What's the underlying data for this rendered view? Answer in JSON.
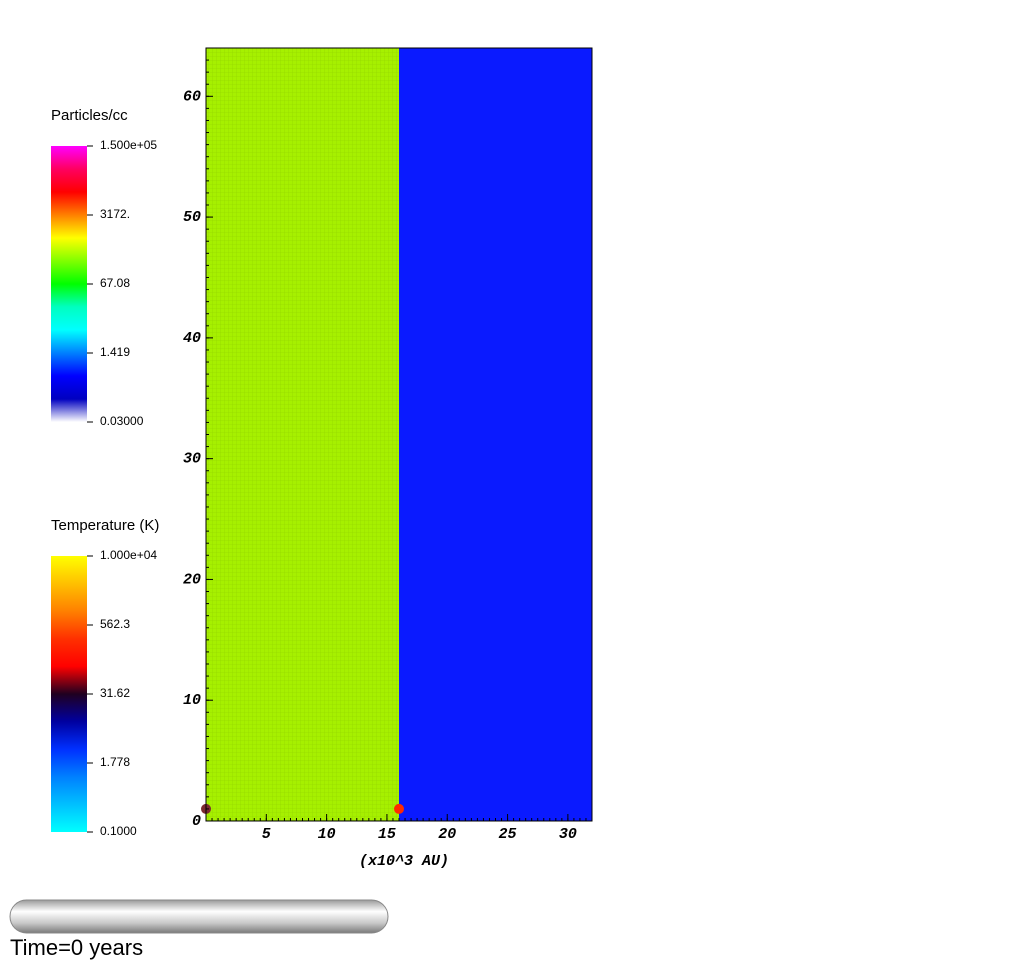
{
  "chart_data": {
    "type": "pseudocolor",
    "xlabel": "(x10^3 AU)",
    "xlim": [
      0,
      32
    ],
    "ylim": [
      0,
      64
    ],
    "xticks": [
      5,
      10,
      15,
      20,
      25,
      30
    ],
    "yticks": [
      0,
      10,
      20,
      30,
      40,
      50,
      60
    ],
    "regions": [
      {
        "x": [
          0,
          16
        ],
        "color": "#a6f000"
      },
      {
        "x": [
          16,
          32
        ],
        "color": "#0a1aff"
      }
    ],
    "points": [
      {
        "x": 0,
        "y": 1,
        "color": "#7a2a30"
      },
      {
        "x": 16,
        "y": 1,
        "color": "#ff2a00"
      }
    ],
    "colorbars": [
      {
        "title": "Particles/cc",
        "log": true,
        "lim": [
          0.03,
          150000
        ],
        "ticks": [
          {
            "value": 150000,
            "label": "1.500e+05"
          },
          {
            "value": 3172,
            "label": "3172."
          },
          67.08,
          1.419,
          {
            "value": 0.03,
            "label": "0.03000"
          }
        ],
        "colors": [
          "#ff00ff",
          "#ff0060",
          "#ff0000",
          "#ff8000",
          "#ffff00",
          "#80ff00",
          "#00ff00",
          "#00ffc0",
          "#00ffff",
          "#0080ff",
          "#0000ff",
          "#0000c0",
          "#ffffff"
        ]
      },
      {
        "title": "Temperature (K)",
        "log": true,
        "lim": [
          0.1,
          10000
        ],
        "ticks": [
          {
            "value": 10000,
            "label": "1.000e+04"
          },
          562.3,
          31.62,
          1.778,
          {
            "value": 0.1,
            "label": "0.1000"
          }
        ],
        "colors": [
          "#ffff00",
          "#ffc000",
          "#ff8000",
          "#ff3000",
          "#ff0000",
          "#200020",
          "#0000a0",
          "#0030ff",
          "#0080ff",
          "#00c0ff",
          "#00ffff"
        ]
      }
    ],
    "time_label": "Time=0 years"
  }
}
